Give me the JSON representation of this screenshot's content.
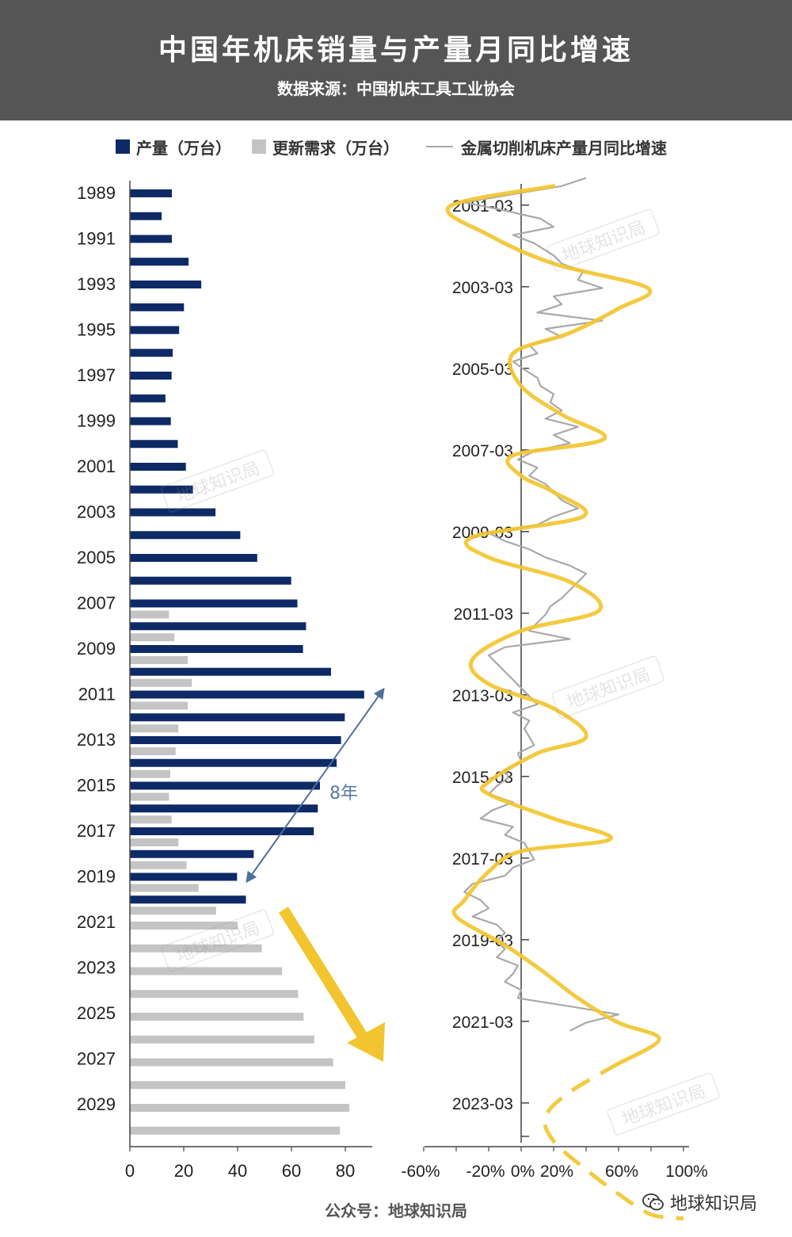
{
  "header": {
    "title": "中国年机床销量与产量月同比增速",
    "subtitle": "数据来源：中国机床工具工业协会"
  },
  "legend": {
    "production_label": "产量（万台）",
    "demand_label": "更新需求（万台）",
    "growth_label": "金属切削机床产量月同比增速"
  },
  "annotation": {
    "cycle_label": "8年"
  },
  "watermark": "地球知识局",
  "footer": {
    "label": "公众号：地球知识局",
    "brand": "地球知识局"
  },
  "colors": {
    "production": "#0e2a66",
    "demand": "#c4c4c4",
    "growth_line": "#a9a9a9",
    "trend": "#f2c530",
    "arrow": "#f2c530",
    "cycle_arrow": "#4f6f99"
  },
  "chart_data": [
    {
      "type": "bar",
      "orientation": "horizontal",
      "categories": [
        1989,
        1990,
        1991,
        1992,
        1993,
        1994,
        1995,
        1996,
        1997,
        1998,
        1999,
        2000,
        2001,
        2002,
        2003,
        2004,
        2005,
        2006,
        2007,
        2008,
        2009,
        2010,
        2011,
        2012,
        2013,
        2014,
        2015,
        2016,
        2017,
        2018,
        2019,
        2020,
        2021,
        2022,
        2023,
        2024,
        2025,
        2026,
        2027,
        2028,
        2029,
        2030
      ],
      "y_tick_labels": [
        "1989",
        "1991",
        "1993",
        "1995",
        "1997",
        "1999",
        "2001",
        "2003",
        "2005",
        "2007",
        "2009",
        "2011",
        "2013",
        "2015",
        "2017",
        "2019",
        "2021",
        "2023",
        "2025",
        "2027",
        "2029"
      ],
      "x_ticks": [
        0,
        20,
        40,
        60,
        80
      ],
      "xlim": [
        0,
        90
      ],
      "series": [
        {
          "name": "产量（万台）",
          "values": [
            15.6,
            11.8,
            15.6,
            21.8,
            26.5,
            20.1,
            18.3,
            15.9,
            15.5,
            13.2,
            15.2,
            17.8,
            20.8,
            23.4,
            31.8,
            41.0,
            47.3,
            59.9,
            62.2,
            65.4,
            64.3,
            74.7,
            87.0,
            79.8,
            78.4,
            76.8,
            70.6,
            69.8,
            68.3,
            46.0,
            39.8,
            43.1,
            null,
            null,
            null,
            null,
            null,
            null,
            null,
            null,
            null,
            null
          ]
        },
        {
          "name": "更新需求（万台）",
          "values": [
            null,
            null,
            null,
            null,
            null,
            null,
            null,
            null,
            null,
            null,
            null,
            null,
            null,
            null,
            null,
            null,
            null,
            null,
            14.5,
            16.5,
            21.5,
            23.0,
            21.5,
            18.0,
            17.0,
            15.0,
            14.5,
            15.5,
            18.0,
            21.0,
            25.5,
            32.0,
            40.0,
            49.0,
            56.5,
            62.5,
            64.5,
            68.5,
            75.5,
            80.0,
            81.5,
            78.0
          ]
        }
      ]
    },
    {
      "type": "line",
      "orientation": "vertical-time",
      "time_tick_labels": [
        "2001-03",
        "2003-03",
        "2005-03",
        "2007-03",
        "2009-03",
        "2011-03",
        "2013-03",
        "2015-03",
        "2017-03",
        "2019-03",
        "2021-03",
        "2023-03"
      ],
      "x_ticks": [
        "-60%",
        "-20%",
        "0%",
        "20%",
        "60%",
        "100%"
      ],
      "xlim": [
        -60,
        100
      ],
      "trend_points": [
        [
          2000.7,
          20
        ],
        [
          2001.2,
          -44
        ],
        [
          2001.9,
          -20
        ],
        [
          2002.6,
          20
        ],
        [
          2003.2,
          78
        ],
        [
          2003.7,
          60
        ],
        [
          2004.3,
          30
        ],
        [
          2004.8,
          -5
        ],
        [
          2005.6,
          0
        ],
        [
          2006.3,
          25
        ],
        [
          2006.9,
          51
        ],
        [
          2007.3,
          -5
        ],
        [
          2007.8,
          0
        ],
        [
          2008.2,
          20
        ],
        [
          2008.8,
          38
        ],
        [
          2009.3,
          -30
        ],
        [
          2009.8,
          -20
        ],
        [
          2010.4,
          30
        ],
        [
          2011.1,
          48
        ],
        [
          2011.6,
          0
        ],
        [
          2012.3,
          -30
        ],
        [
          2012.9,
          -20
        ],
        [
          2013.5,
          20
        ],
        [
          2014.2,
          40
        ],
        [
          2014.6,
          10
        ],
        [
          2015.3,
          -20
        ],
        [
          2015.6,
          -20
        ],
        [
          2016.2,
          20
        ],
        [
          2016.7,
          55
        ],
        [
          2017.0,
          0
        ],
        [
          2017.5,
          -20
        ],
        [
          2018.2,
          -35
        ],
        [
          2018.6,
          -40
        ],
        [
          2019.3,
          -10
        ],
        [
          2019.9,
          12
        ],
        [
          2020.6,
          35
        ],
        [
          2021.2,
          60
        ],
        [
          2021.6,
          85
        ],
        [
          2022.2,
          60
        ],
        [
          2022.9,
          30
        ],
        [
          2023.5,
          15
        ],
        [
          2024.1,
          20
        ],
        [
          2024.8,
          40
        ],
        [
          2025.4,
          60
        ],
        [
          2025.9,
          80
        ],
        [
          2026.0,
          100
        ]
      ],
      "trend_projection_start": 2022.2,
      "growth_series": [
        [
          2000.5,
          40
        ],
        [
          2000.7,
          25
        ],
        [
          2000.9,
          -5
        ],
        [
          2001.1,
          -35
        ],
        [
          2001.3,
          -10
        ],
        [
          2001.5,
          12
        ],
        [
          2001.7,
          20
        ],
        [
          2001.9,
          -5
        ],
        [
          2002.1,
          8
        ],
        [
          2002.4,
          20
        ],
        [
          2002.6,
          25
        ],
        [
          2002.8,
          38
        ],
        [
          2003.0,
          35
        ],
        [
          2003.2,
          50
        ],
        [
          2003.4,
          20
        ],
        [
          2003.6,
          25
        ],
        [
          2003.8,
          10
        ],
        [
          2004.0,
          50
        ],
        [
          2004.2,
          15
        ],
        [
          2004.4,
          25
        ],
        [
          2004.6,
          5
        ],
        [
          2004.8,
          10
        ],
        [
          2005.0,
          -5
        ],
        [
          2005.2,
          2
        ],
        [
          2005.4,
          10
        ],
        [
          2005.6,
          12
        ],
        [
          2005.8,
          20
        ],
        [
          2006.0,
          18
        ],
        [
          2006.2,
          25
        ],
        [
          2006.4,
          15
        ],
        [
          2006.6,
          35
        ],
        [
          2006.8,
          20
        ],
        [
          2007.0,
          30
        ],
        [
          2007.2,
          8
        ],
        [
          2007.4,
          -2
        ],
        [
          2007.6,
          10
        ],
        [
          2007.8,
          5
        ],
        [
          2008.0,
          15
        ],
        [
          2008.2,
          20
        ],
        [
          2008.4,
          25
        ],
        [
          2008.6,
          35
        ],
        [
          2008.8,
          20
        ],
        [
          2009.0,
          10
        ],
        [
          2009.2,
          -20
        ],
        [
          2009.4,
          -10
        ],
        [
          2009.6,
          5
        ],
        [
          2009.8,
          15
        ],
        [
          2010.0,
          30
        ],
        [
          2010.2,
          40
        ],
        [
          2010.4,
          35
        ],
        [
          2010.6,
          30
        ],
        [
          2010.8,
          25
        ],
        [
          2011.0,
          18
        ],
        [
          2011.2,
          15
        ],
        [
          2011.4,
          10
        ],
        [
          2011.6,
          5
        ],
        [
          2011.8,
          30
        ],
        [
          2012.0,
          -10
        ],
        [
          2012.2,
          -20
        ],
        [
          2012.4,
          -15
        ],
        [
          2012.6,
          -10
        ],
        [
          2012.8,
          -5
        ],
        [
          2013.0,
          0
        ],
        [
          2013.2,
          5
        ],
        [
          2013.4,
          10
        ],
        [
          2013.6,
          -5
        ],
        [
          2013.8,
          5
        ],
        [
          2014.0,
          2
        ],
        [
          2014.2,
          5
        ],
        [
          2014.4,
          8
        ],
        [
          2014.6,
          -2
        ],
        [
          2014.8,
          0
        ],
        [
          2015.0,
          -10
        ],
        [
          2015.2,
          -8
        ],
        [
          2015.4,
          -15
        ],
        [
          2015.6,
          -20
        ],
        [
          2015.8,
          -5
        ],
        [
          2016.0,
          -18
        ],
        [
          2016.2,
          -25
        ],
        [
          2016.4,
          -5
        ],
        [
          2016.6,
          -10
        ],
        [
          2016.8,
          2
        ],
        [
          2017.0,
          5
        ],
        [
          2017.2,
          8
        ],
        [
          2017.4,
          -5
        ],
        [
          2017.6,
          -10
        ],
        [
          2017.8,
          -30
        ],
        [
          2018.0,
          -35
        ],
        [
          2018.2,
          -25
        ],
        [
          2018.4,
          -20
        ],
        [
          2018.6,
          -30
        ],
        [
          2018.8,
          -15
        ],
        [
          2019.0,
          -10
        ],
        [
          2019.2,
          -15
        ],
        [
          2019.4,
          -10
        ],
        [
          2019.6,
          -15
        ],
        [
          2019.8,
          -2
        ],
        [
          2020.0,
          -5
        ],
        [
          2020.2,
          -10
        ],
        [
          2020.4,
          0
        ],
        [
          2020.6,
          -2
        ],
        [
          2020.8,
          30
        ],
        [
          2021.0,
          60
        ],
        [
          2021.2,
          40
        ],
        [
          2021.4,
          30
        ]
      ]
    }
  ]
}
